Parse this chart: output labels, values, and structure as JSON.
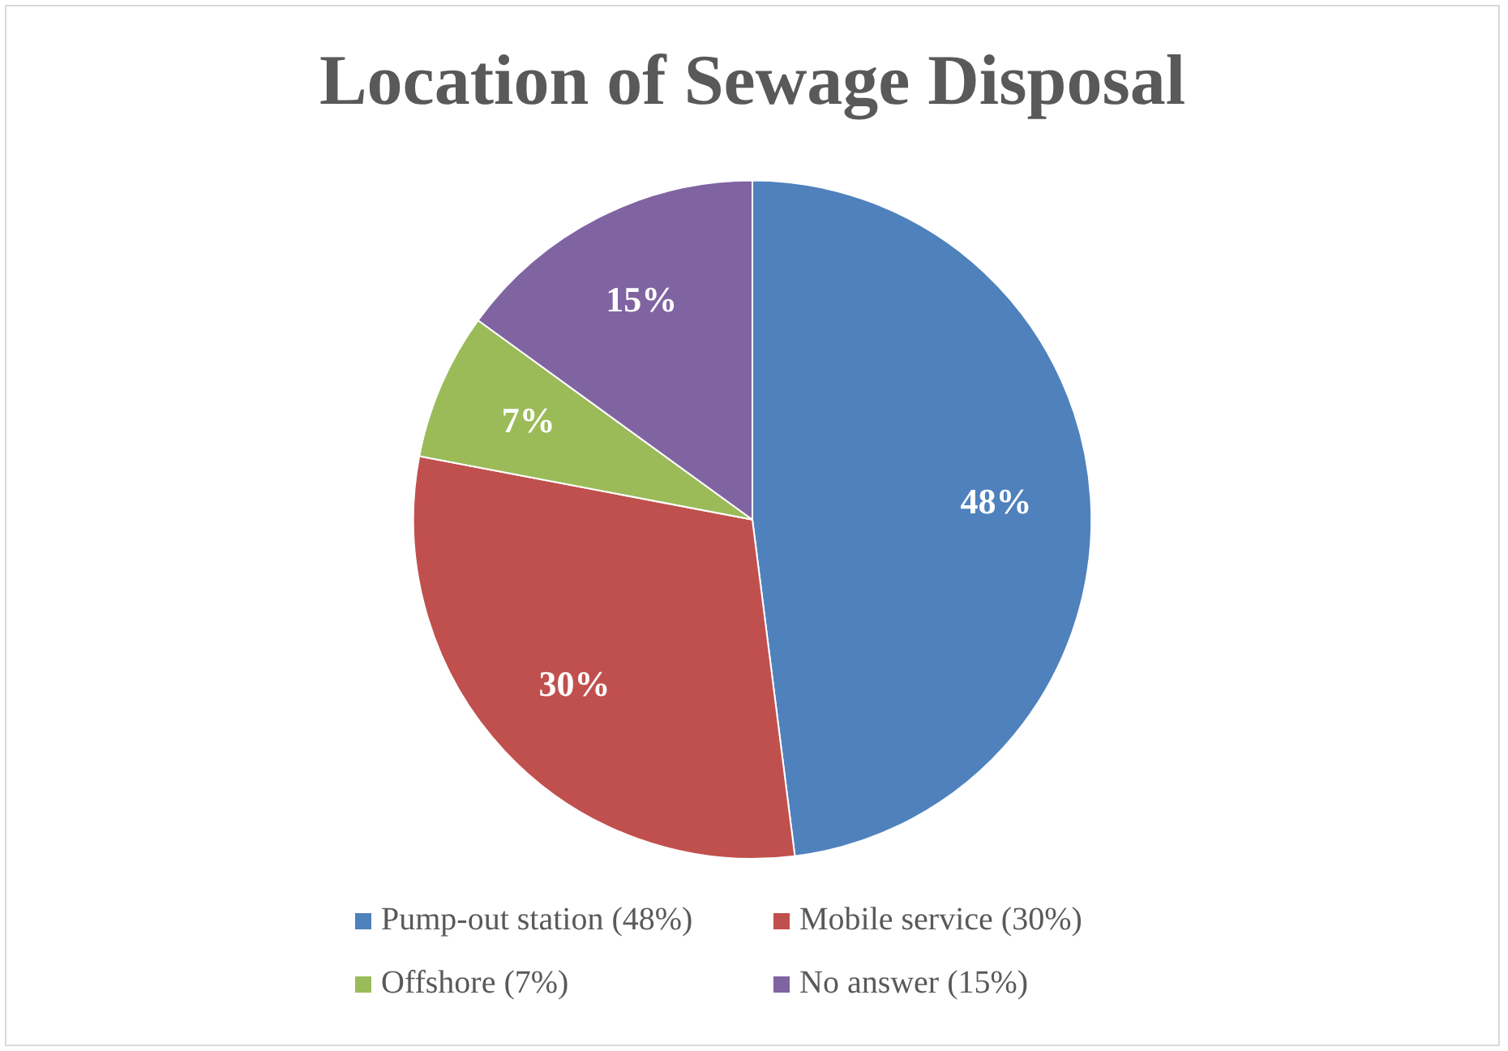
{
  "chart_data": {
    "type": "pie",
    "title": "Location of Sewage Disposal",
    "categories": [
      "Pump-out station (48%)",
      "Mobile service (30%)",
      "Offshore (7%)",
      "No answer (15%)"
    ],
    "values": [
      48,
      30,
      7,
      15
    ],
    "colors": [
      "#4f81bd",
      "#c0504d",
      "#9bbb59",
      "#8064a2"
    ],
    "value_labels": [
      "48%",
      "30%",
      "7%",
      "15%"
    ],
    "legend": "bottom"
  }
}
